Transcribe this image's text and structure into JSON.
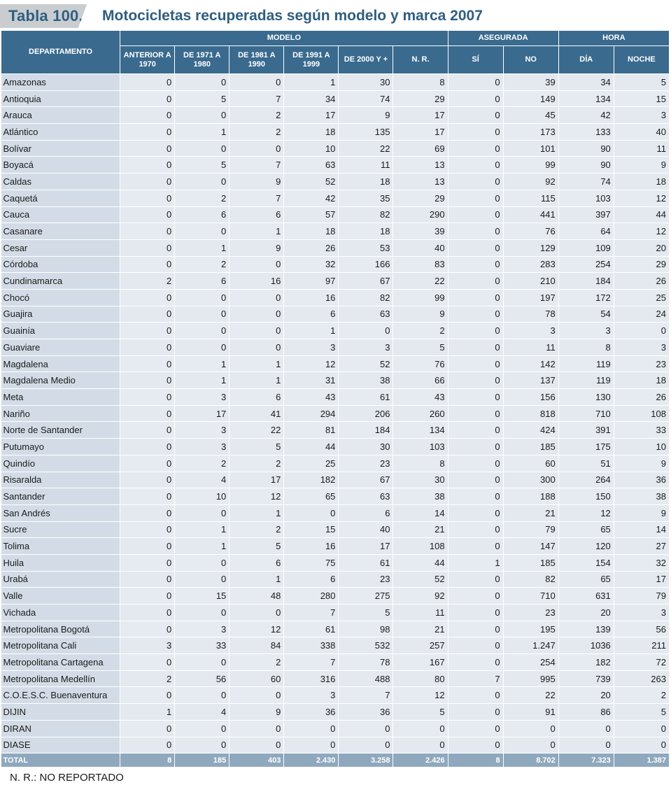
{
  "title": {
    "label": "Tabla 100.",
    "text": "Motocicletas recuperadas según modelo y marca 2007"
  },
  "headers": {
    "departamento": "DEPARTAMENTO",
    "modelo": "MODELO",
    "asegurada": "ASEGURADA",
    "hora": "HORA",
    "cols": [
      "ANTERIOR A 1970",
      "DE 1971 A 1980",
      "DE 1981 A 1990",
      "DE 1991 A 1999",
      "DE 2000 Y +",
      "N. R.",
      "SÍ",
      "NO",
      "DÍA",
      "NOCHE"
    ]
  },
  "rows": [
    [
      "Amazonas",
      "0",
      "0",
      "0",
      "1",
      "30",
      "8",
      "0",
      "39",
      "34",
      "5"
    ],
    [
      "Antioquia",
      "0",
      "5",
      "7",
      "34",
      "74",
      "29",
      "0",
      "149",
      "134",
      "15"
    ],
    [
      "Arauca",
      "0",
      "0",
      "2",
      "17",
      "9",
      "17",
      "0",
      "45",
      "42",
      "3"
    ],
    [
      "Atlántico",
      "0",
      "1",
      "2",
      "18",
      "135",
      "17",
      "0",
      "173",
      "133",
      "40"
    ],
    [
      "Bolívar",
      "0",
      "0",
      "0",
      "10",
      "22",
      "69",
      "0",
      "101",
      "90",
      "11"
    ],
    [
      "Boyacá",
      "0",
      "5",
      "7",
      "63",
      "11",
      "13",
      "0",
      "99",
      "90",
      "9"
    ],
    [
      "Caldas",
      "0",
      "0",
      "9",
      "52",
      "18",
      "13",
      "0",
      "92",
      "74",
      "18"
    ],
    [
      "Caquetá",
      "0",
      "2",
      "7",
      "42",
      "35",
      "29",
      "0",
      "115",
      "103",
      "12"
    ],
    [
      "Cauca",
      "0",
      "6",
      "6",
      "57",
      "82",
      "290",
      "0",
      "441",
      "397",
      "44"
    ],
    [
      "Casanare",
      "0",
      "0",
      "1",
      "18",
      "18",
      "39",
      "0",
      "76",
      "64",
      "12"
    ],
    [
      "Cesar",
      "0",
      "1",
      "9",
      "26",
      "53",
      "40",
      "0",
      "129",
      "109",
      "20"
    ],
    [
      "Córdoba",
      "0",
      "2",
      "0",
      "32",
      "166",
      "83",
      "0",
      "283",
      "254",
      "29"
    ],
    [
      "Cundinamarca",
      "2",
      "6",
      "16",
      "97",
      "67",
      "22",
      "0",
      "210",
      "184",
      "26"
    ],
    [
      "Chocó",
      "0",
      "0",
      "0",
      "16",
      "82",
      "99",
      "0",
      "197",
      "172",
      "25"
    ],
    [
      "Guajira",
      "0",
      "0",
      "0",
      "6",
      "63",
      "9",
      "0",
      "78",
      "54",
      "24"
    ],
    [
      "Guainía",
      "0",
      "0",
      "0",
      "1",
      "0",
      "2",
      "0",
      "3",
      "3",
      "0"
    ],
    [
      "Guaviare",
      "0",
      "0",
      "0",
      "3",
      "3",
      "5",
      "0",
      "11",
      "8",
      "3"
    ],
    [
      "Magdalena",
      "0",
      "1",
      "1",
      "12",
      "52",
      "76",
      "0",
      "142",
      "119",
      "23"
    ],
    [
      "Magdalena Medio",
      "0",
      "1",
      "1",
      "31",
      "38",
      "66",
      "0",
      "137",
      "119",
      "18"
    ],
    [
      "Meta",
      "0",
      "3",
      "6",
      "43",
      "61",
      "43",
      "0",
      "156",
      "130",
      "26"
    ],
    [
      "Nariño",
      "0",
      "17",
      "41",
      "294",
      "206",
      "260",
      "0",
      "818",
      "710",
      "108"
    ],
    [
      "Norte de Santander",
      "0",
      "3",
      "22",
      "81",
      "184",
      "134",
      "0",
      "424",
      "391",
      "33"
    ],
    [
      "Putumayo",
      "0",
      "3",
      "5",
      "44",
      "30",
      "103",
      "0",
      "185",
      "175",
      "10"
    ],
    [
      "Quindío",
      "0",
      "2",
      "2",
      "25",
      "23",
      "8",
      "0",
      "60",
      "51",
      "9"
    ],
    [
      "Risaralda",
      "0",
      "4",
      "17",
      "182",
      "67",
      "30",
      "0",
      "300",
      "264",
      "36"
    ],
    [
      "Santander",
      "0",
      "10",
      "12",
      "65",
      "63",
      "38",
      "0",
      "188",
      "150",
      "38"
    ],
    [
      "San Andrés",
      "0",
      "0",
      "1",
      "0",
      "6",
      "14",
      "0",
      "21",
      "12",
      "9"
    ],
    [
      "Sucre",
      "0",
      "1",
      "2",
      "15",
      "40",
      "21",
      "0",
      "79",
      "65",
      "14"
    ],
    [
      "Tolima",
      "0",
      "1",
      "5",
      "16",
      "17",
      "108",
      "0",
      "147",
      "120",
      "27"
    ],
    [
      "Huila",
      "0",
      "0",
      "6",
      "75",
      "61",
      "44",
      "1",
      "185",
      "154",
      "32"
    ],
    [
      "Urabá",
      "0",
      "0",
      "1",
      "6",
      "23",
      "52",
      "0",
      "82",
      "65",
      "17"
    ],
    [
      "Valle",
      "0",
      "15",
      "48",
      "280",
      "275",
      "92",
      "0",
      "710",
      "631",
      "79"
    ],
    [
      "Vichada",
      "0",
      "0",
      "0",
      "7",
      "5",
      "11",
      "0",
      "23",
      "20",
      "3"
    ],
    [
      "Metropolitana Bogotá",
      "0",
      "3",
      "12",
      "61",
      "98",
      "21",
      "0",
      "195",
      "139",
      "56"
    ],
    [
      "Metropolitana Cali",
      "3",
      "33",
      "84",
      "338",
      "532",
      "257",
      "0",
      "1.247",
      "1036",
      "211"
    ],
    [
      "Metropolitana Cartagena",
      "0",
      "0",
      "2",
      "7",
      "78",
      "167",
      "0",
      "254",
      "182",
      "72"
    ],
    [
      "Metropolitana Medellín",
      "2",
      "56",
      "60",
      "316",
      "488",
      "80",
      "7",
      "995",
      "739",
      "263"
    ],
    [
      "C.O.E.S.C. Buenaventura",
      "0",
      "0",
      "0",
      "3",
      "7",
      "12",
      "0",
      "22",
      "20",
      "2"
    ],
    [
      "DIJIN",
      "1",
      "4",
      "9",
      "36",
      "36",
      "5",
      "0",
      "91",
      "86",
      "5"
    ],
    [
      "DIRAN",
      "0",
      "0",
      "0",
      "0",
      "0",
      "0",
      "0",
      "0",
      "0",
      "0"
    ],
    [
      "DIASE",
      "0",
      "0",
      "0",
      "0",
      "0",
      "0",
      "0",
      "0",
      "0",
      "0"
    ]
  ],
  "total": [
    "TOTAL",
    "8",
    "185",
    "403",
    "2.430",
    "3.258",
    "2.426",
    "8",
    "8.702",
    "7.323",
    "1.387"
  ],
  "footnote": "N. R.: NO REPORTADO",
  "colors": {
    "header": "#3a6a8e",
    "title": "#2f5e80",
    "total": "#8fa8bd"
  }
}
